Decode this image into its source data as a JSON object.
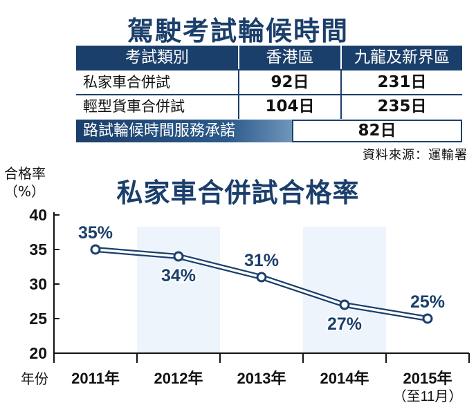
{
  "table": {
    "title": "駕駛考試輪候時間",
    "headers": [
      "考試類別",
      "香港區",
      "九龍及新界區"
    ],
    "rows": [
      {
        "label": "私家車合併試",
        "hk": "92日",
        "kln": "231日"
      },
      {
        "label": "輕型貨車合併試",
        "hk": "104日",
        "kln": "235日"
      }
    ],
    "service_label": "路試輪候時間服務承諾",
    "service_value": "82日",
    "source": "資料來源：運輸署"
  },
  "colors": {
    "navy": "#1b3f6b",
    "band": "#eef4fb"
  },
  "chart_data": {
    "type": "line",
    "title": "私家車合併試合格率",
    "ylabel": "合格率\n（%）",
    "xlabel": "年份",
    "categories": [
      "2011年",
      "2012年",
      "2013年",
      "2014年",
      "2015年"
    ],
    "x_note": "（至11月）",
    "values": [
      35,
      34,
      31,
      27,
      25
    ],
    "data_labels": [
      "35%",
      "34%",
      "31%",
      "27%",
      "25%"
    ],
    "yticks": [
      20,
      25,
      30,
      35,
      40
    ],
    "ylim": [
      20,
      40
    ],
    "grid": false
  }
}
